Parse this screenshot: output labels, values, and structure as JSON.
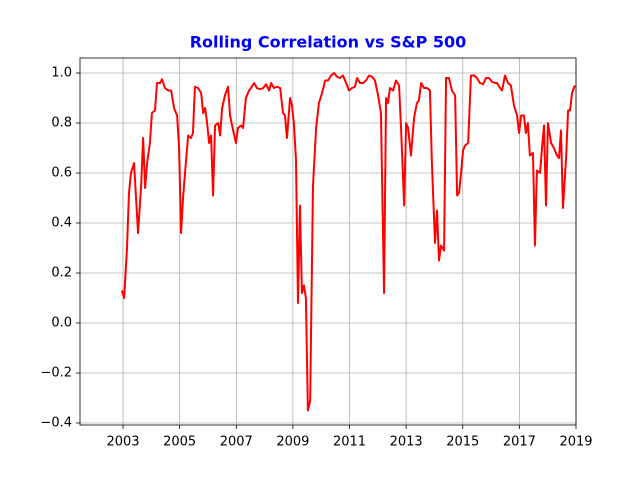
{
  "chart_data": {
    "type": "line",
    "title": "Rolling Correlation vs S&P 500",
    "title_color": "#0000ff",
    "grid": true,
    "xlim": [
      2001.48,
      2019
    ],
    "xticks": [
      2003,
      2005,
      2007,
      2009,
      2011,
      2013,
      2015,
      2017,
      2019
    ],
    "ylim": [
      -0.408,
      1.06
    ],
    "yticks": [
      {
        "value": -0.4,
        "label": "−0.4"
      },
      {
        "value": -0.2,
        "label": "−0.2"
      },
      {
        "value": 0,
        "label": "0.0"
      },
      0.2,
      0.4,
      0.6,
      0.8,
      {
        "value": 1,
        "label": "1.0"
      }
    ],
    "x": [
      2002.96,
      2003.04,
      2003.14,
      2003.21,
      2003.28,
      2003.39,
      2003.46,
      2003.53,
      2003.64,
      2003.71,
      2003.78,
      2003.85,
      2003.95,
      2004.02,
      2004.13,
      2004.2,
      2004.31,
      2004.38,
      2004.48,
      2004.59,
      2004.7,
      2004.8,
      2004.91,
      2004.98,
      2005.05,
      2005.12,
      2005.19,
      2005.3,
      2005.4,
      2005.47,
      2005.54,
      2005.65,
      2005.76,
      2005.83,
      2005.9,
      2005.97,
      2006.04,
      2006.11,
      2006.18,
      2006.25,
      2006.36,
      2006.43,
      2006.5,
      2006.6,
      2006.71,
      2006.78,
      2006.89,
      2006.99,
      2007.06,
      2007.17,
      2007.24,
      2007.34,
      2007.45,
      2007.52,
      2007.63,
      2007.73,
      2007.84,
      2007.95,
      2008.05,
      2008.16,
      2008.23,
      2008.33,
      2008.44,
      2008.55,
      2008.65,
      2008.72,
      2008.79,
      2008.9,
      2008.97,
      2009.04,
      2009.11,
      2009.18,
      2009.25,
      2009.32,
      2009.39,
      2009.46,
      2009.53,
      2009.61,
      2009.71,
      2009.82,
      2009.92,
      2010.03,
      2010.14,
      2010.24,
      2010.35,
      2010.45,
      2010.56,
      2010.66,
      2010.77,
      2010.88,
      2010.98,
      2011.09,
      2011.19,
      2011.27,
      2011.37,
      2011.48,
      2011.58,
      2011.69,
      2011.8,
      2011.9,
      2012.01,
      2012.11,
      2012.22,
      2012.29,
      2012.36,
      2012.43,
      2012.54,
      2012.64,
      2012.75,
      2012.82,
      2012.93,
      2013.0,
      2013.07,
      2013.17,
      2013.28,
      2013.38,
      2013.45,
      2013.53,
      2013.63,
      2013.74,
      2013.84,
      2013.91,
      2014.02,
      2014.09,
      2014.16,
      2014.23,
      2014.34,
      2014.41,
      2014.51,
      2014.62,
      2014.73,
      2014.8,
      2014.87,
      2014.94,
      2015.01,
      2015.08,
      2015.19,
      2015.29,
      2015.4,
      2015.5,
      2015.61,
      2015.72,
      2015.82,
      2015.93,
      2016.03,
      2016.14,
      2016.21,
      2016.32,
      2016.39,
      2016.49,
      2016.6,
      2016.7,
      2016.81,
      2016.92,
      2016.99,
      2017.06,
      2017.16,
      2017.23,
      2017.3,
      2017.37,
      2017.48,
      2017.55,
      2017.62,
      2017.73,
      2017.8,
      2017.87,
      2017.94,
      2018.01,
      2018.12,
      2018.22,
      2018.33,
      2018.4,
      2018.47,
      2018.54,
      2018.65,
      2018.72,
      2018.79,
      2018.86,
      2018.96
    ],
    "series": [
      {
        "color": "#ff0000",
        "values": [
          0.13,
          0.1,
          0.3,
          0.52,
          0.6,
          0.64,
          0.5,
          0.36,
          0.55,
          0.74,
          0.54,
          0.64,
          0.72,
          0.84,
          0.85,
          0.96,
          0.96,
          0.975,
          0.94,
          0.93,
          0.93,
          0.86,
          0.83,
          0.7,
          0.36,
          0.5,
          0.6,
          0.75,
          0.74,
          0.76,
          0.945,
          0.94,
          0.92,
          0.84,
          0.86,
          0.8,
          0.72,
          0.75,
          0.51,
          0.79,
          0.8,
          0.75,
          0.86,
          0.91,
          0.945,
          0.83,
          0.77,
          0.72,
          0.78,
          0.79,
          0.78,
          0.9,
          0.93,
          0.94,
          0.96,
          0.94,
          0.935,
          0.94,
          0.955,
          0.93,
          0.96,
          0.94,
          0.945,
          0.94,
          0.84,
          0.83,
          0.74,
          0.9,
          0.87,
          0.79,
          0.65,
          0.08,
          0.47,
          0.12,
          0.15,
          0.1,
          -0.35,
          -0.31,
          0.55,
          0.78,
          0.88,
          0.92,
          0.97,
          0.97,
          0.99,
          1.0,
          0.985,
          0.98,
          0.99,
          0.96,
          0.93,
          0.94,
          0.945,
          0.98,
          0.96,
          0.96,
          0.97,
          0.99,
          0.985,
          0.97,
          0.91,
          0.84,
          0.12,
          0.9,
          0.88,
          0.94,
          0.93,
          0.97,
          0.95,
          0.78,
          0.47,
          0.8,
          0.78,
          0.67,
          0.82,
          0.88,
          0.89,
          0.96,
          0.94,
          0.94,
          0.93,
          0.64,
          0.32,
          0.45,
          0.25,
          0.31,
          0.29,
          0.98,
          0.98,
          0.93,
          0.91,
          0.51,
          0.52,
          0.6,
          0.69,
          0.71,
          0.72,
          0.99,
          0.99,
          0.98,
          0.96,
          0.955,
          0.98,
          0.98,
          0.965,
          0.96,
          0.96,
          0.94,
          0.93,
          0.99,
          0.96,
          0.95,
          0.87,
          0.83,
          0.76,
          0.83,
          0.83,
          0.76,
          0.8,
          0.67,
          0.68,
          0.31,
          0.61,
          0.6,
          0.7,
          0.79,
          0.47,
          0.8,
          0.72,
          0.7,
          0.67,
          0.66,
          0.77,
          0.46,
          0.66,
          0.85,
          0.85,
          0.92,
          0.95
        ]
      }
    ]
  }
}
